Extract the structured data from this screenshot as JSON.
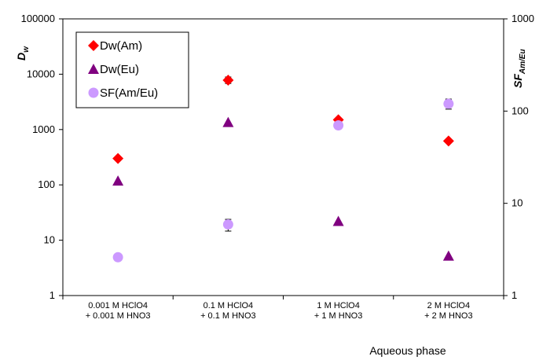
{
  "chart_data": {
    "type": "scatter",
    "categories": [
      [
        "0.001 M HClO4",
        "+ 0.001 M HNO3"
      ],
      [
        "0.1 M HClO4",
        "+ 0.1 M HNO3"
      ],
      [
        "1 M HClO4",
        "+ 1 M HNO3"
      ],
      [
        "2 M HClO4",
        "+ 2 M HNO3"
      ]
    ],
    "xlabel": "Aqueous phase",
    "ylabel_left": {
      "main": "D",
      "sub": "w"
    },
    "ylabel_right": {
      "main": "SF",
      "sub": "Am/Eu"
    },
    "y_left": {
      "scale": "log",
      "lim": [
        1,
        100000
      ],
      "ticks": [
        "1",
        "10",
        "100",
        "1000",
        "10000",
        "100000"
      ]
    },
    "y_right": {
      "scale": "log",
      "lim": [
        1,
        1000
      ],
      "ticks": [
        "1",
        "10",
        "100",
        "1000"
      ]
    },
    "grid": false,
    "legend_placement": "top-left",
    "series": [
      {
        "name": "Dw(Am)",
        "axis": "left",
        "marker": "diamond",
        "color": "#ff0000",
        "values": [
          300,
          7800,
          1500,
          620
        ],
        "err_low": [
          null,
          6800,
          null,
          null
        ],
        "err_high": [
          null,
          8900,
          null,
          null
        ]
      },
      {
        "name": "Dw(Eu)",
        "axis": "left",
        "marker": "triangle",
        "color": "#800080",
        "values": [
          118,
          1350,
          22,
          5.2
        ],
        "err_low": [
          null,
          null,
          null,
          null
        ],
        "err_high": [
          null,
          null,
          null,
          null
        ]
      },
      {
        "name": "SF(Am/Eu)",
        "axis": "right",
        "marker": "circle",
        "color": "#cc99ff",
        "values": [
          2.6,
          5.9,
          70,
          120
        ],
        "err_low": [
          null,
          5.0,
          null,
          105
        ],
        "err_high": [
          null,
          6.7,
          null,
          135
        ]
      }
    ]
  }
}
